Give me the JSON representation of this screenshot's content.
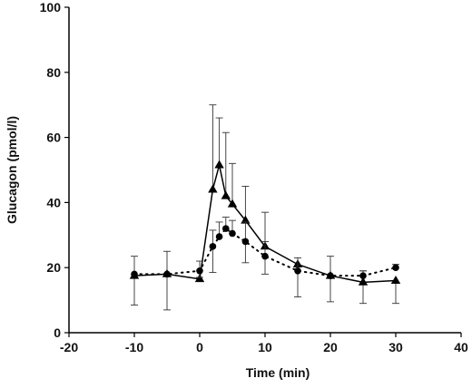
{
  "chart_data": {
    "type": "line",
    "title": "",
    "xlabel": "Time (min)",
    "ylabel": "Glucagon (pmol/l)",
    "xlim": [
      -20,
      40
    ],
    "ylim": [
      0,
      100
    ],
    "xticks": [
      -20,
      -10,
      0,
      10,
      20,
      30,
      40
    ],
    "yticks": [
      0,
      20,
      40,
      60,
      80,
      100
    ],
    "xtick_labels": [
      "-20",
      "-10",
      "0",
      "10",
      "20",
      "30",
      "40"
    ],
    "ytick_labels": [
      "0",
      "20",
      "40",
      "60",
      "80",
      "100"
    ],
    "grid": false,
    "legend": "none",
    "series": [
      {
        "marker": "triangle",
        "line_style": "solid",
        "color": "#000000",
        "x": [
          -10,
          -5,
          0,
          2,
          3,
          4,
          5,
          7,
          10,
          15,
          20,
          25,
          30
        ],
        "y": [
          17.5,
          18,
          16.5,
          44,
          51.5,
          42,
          39.5,
          34.5,
          26.5,
          21,
          17.5,
          15.5,
          16
        ],
        "err_plus": [
          0,
          0,
          0,
          26,
          14.5,
          19.5,
          12.5,
          10.5,
          10.5,
          0,
          0,
          3.5,
          0
        ],
        "err_minus": [
          9,
          11,
          0,
          0,
          0,
          0,
          0,
          0,
          0,
          0,
          8,
          6.5,
          7
        ]
      },
      {
        "marker": "circle",
        "line_style": "dotted",
        "color": "#000000",
        "x": [
          -10,
          -5,
          0,
          2,
          3,
          4,
          5,
          7,
          10,
          15,
          20,
          25,
          30
        ],
        "y": [
          18,
          18,
          19,
          26.5,
          29.5,
          32,
          30.5,
          28,
          23.5,
          19,
          17.5,
          17.5,
          20
        ],
        "err_plus": [
          5.5,
          7,
          3,
          5,
          4.5,
          3.5,
          4,
          6,
          4.5,
          4,
          6,
          1.5,
          1
        ],
        "err_minus": [
          0,
          0,
          2,
          8,
          0,
          0,
          0,
          6.5,
          5.5,
          8,
          0,
          0,
          0
        ]
      }
    ]
  }
}
